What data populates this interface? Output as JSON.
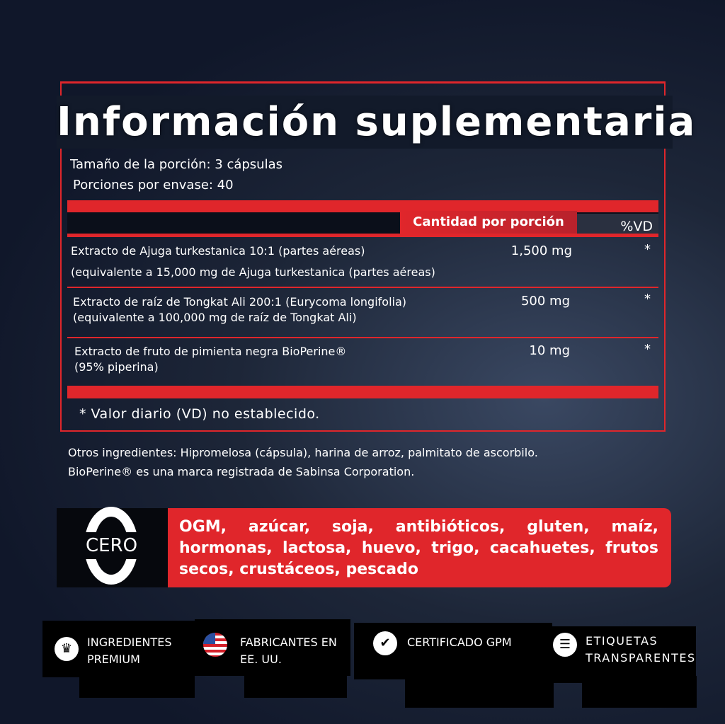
{
  "title": "Información suplementaria",
  "serving_size": "Tamaño de la porción: 3 cápsulas",
  "servings_per_container": "Porciones por envase: 40",
  "table": {
    "header_amount": "Cantidad por porción",
    "header_dv": "%VD",
    "rows": [
      {
        "line1": "Extracto de Ajuga turkestanica 10:1 (partes aéreas)",
        "line2": "(equivalente a 15,000 mg de Ajuga turkestanica (partes aéreas)",
        "amount": "1,500 mg",
        "dv": "*"
      },
      {
        "line1": "Extracto de raíz de Tongkat Ali 200:1 (Eurycoma longifolia)",
        "line2": "(equivalente a 100,000 mg de raíz de Tongkat Ali)",
        "amount": "500 mg",
        "dv": "*"
      },
      {
        "line1": "Extracto de fruto de pimienta negra BioPerine®",
        "line2": "(95% piperina)",
        "amount": "10 mg",
        "dv": "*"
      }
    ],
    "footnote": "* Valor diario (VD) no establecido."
  },
  "other_ingredients": "Otros ingredientes: Hipromelosa (cápsula), harina de arroz, palmitato de ascorbilo.",
  "trademark": "BioPerine® es una marca registrada de Sabinsa Corporation.",
  "free_from": {
    "badge": "CERO",
    "list": "OGM, azúcar, soja, antibióticos, gluten, maíz, hormonas, lactosa, huevo, trigo, cacahuetes, frutos secos, crustáceos, pescado"
  },
  "features": [
    {
      "icon": "crown-icon",
      "line1": "INGREDIENTES",
      "line2": "PREMIUM"
    },
    {
      "icon": "us-flag-icon",
      "line1": "FABRICANTES EN",
      "line2": "EE. UU."
    },
    {
      "icon": "certified-check-icon",
      "line1": "CERTIFICADO GPM",
      "line2": ""
    },
    {
      "icon": "label-list-icon",
      "line1": "ETIQUETAS",
      "line2": "TRANSPARENTES"
    }
  ],
  "colors": {
    "accent": "#e0262b",
    "background": "#10172a"
  }
}
